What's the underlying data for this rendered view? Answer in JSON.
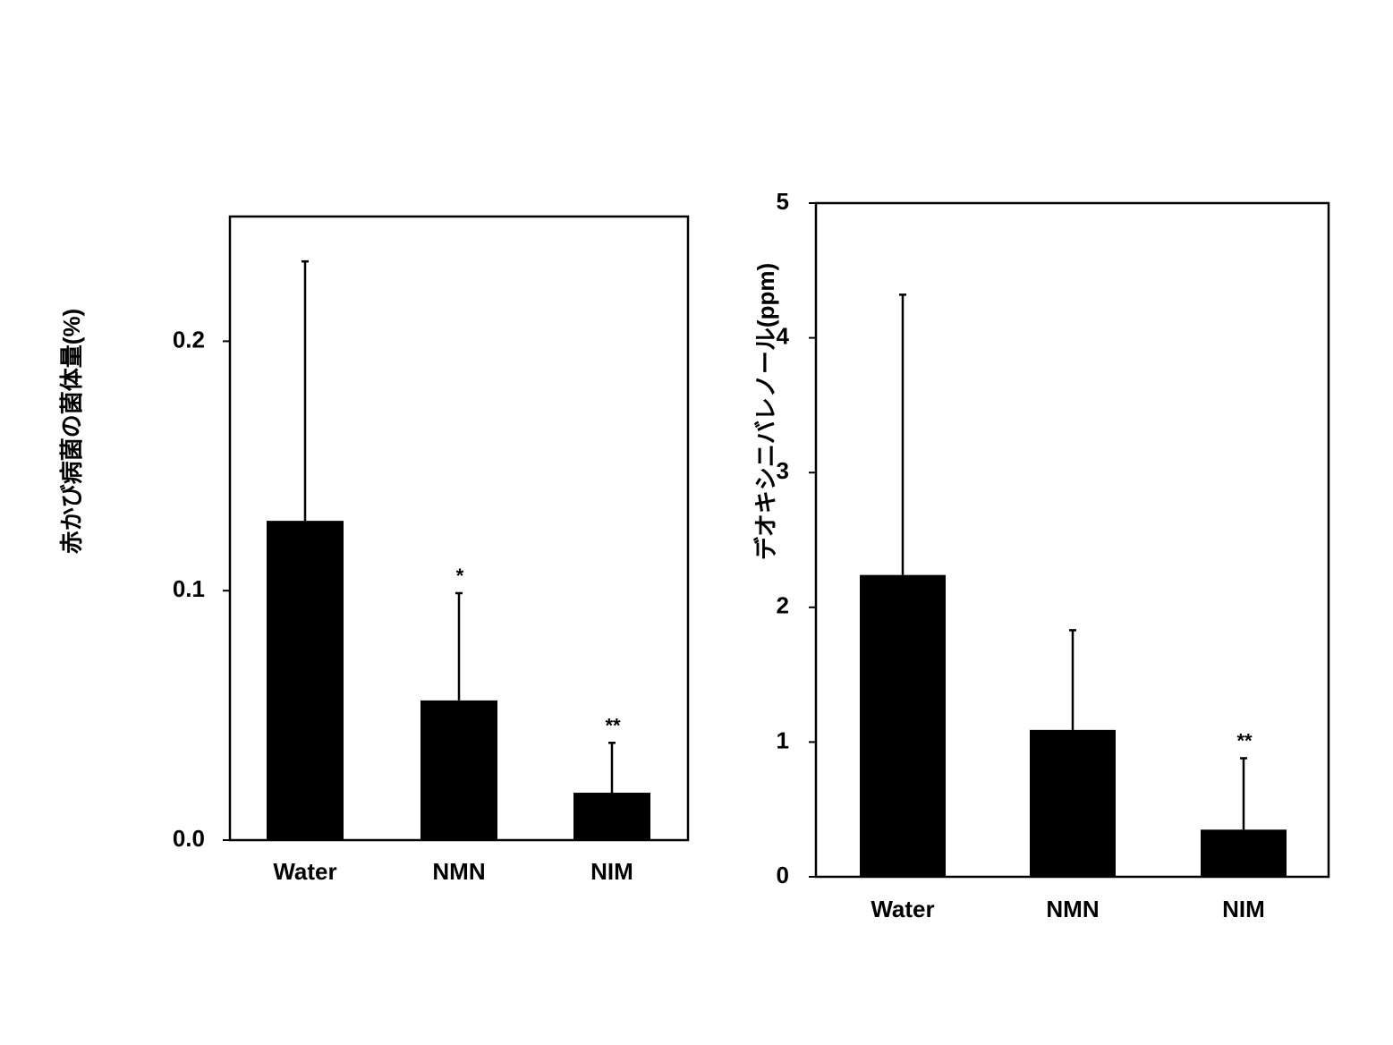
{
  "colors": {
    "bar": "#000000",
    "axis": "#000000",
    "background": "#ffffff"
  },
  "chart_data": [
    {
      "type": "bar",
      "title": "",
      "xlabel": "",
      "ylabel": "赤かび病菌の菌体量(%)",
      "categories": [
        "Water",
        "NMN",
        "NIM"
      ],
      "values": [
        0.128,
        0.056,
        0.019
      ],
      "error_upper": [
        0.232,
        0.099,
        0.039
      ],
      "significance": [
        "",
        "*",
        "**"
      ],
      "ylim": [
        0,
        0.25
      ],
      "yticks": [
        0.0,
        0.1,
        0.2
      ],
      "ytick_labels": [
        "0.0",
        "0.1",
        "0.2"
      ],
      "grid": false,
      "legend": "none"
    },
    {
      "type": "bar",
      "title": "",
      "xlabel": "",
      "ylabel": "デオキシニバレノール(ppm)",
      "categories": [
        "Water",
        "NMN",
        "NIM"
      ],
      "values": [
        2.24,
        1.09,
        0.35
      ],
      "error_upper": [
        4.32,
        1.83,
        0.88
      ],
      "significance": [
        "",
        "",
        "**"
      ],
      "ylim": [
        0,
        5
      ],
      "yticks": [
        0,
        1,
        2,
        3,
        4,
        5
      ],
      "ytick_labels": [
        "0",
        "1",
        "2",
        "3",
        "4",
        "5"
      ],
      "grid": false,
      "legend": "none"
    }
  ]
}
